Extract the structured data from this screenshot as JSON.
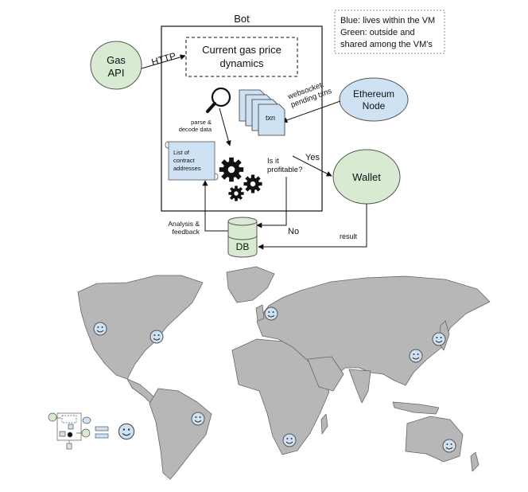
{
  "legend": {
    "line1": "Blue: lives within the VM",
    "line2": "Green: outside and",
    "line3": "shared among the VM's"
  },
  "bot": {
    "title": "Bot"
  },
  "gas_price": {
    "line1": "Current gas price",
    "line2": "dynamics"
  },
  "gas_api": {
    "line1": "Gas",
    "line2": "API"
  },
  "http_label": "HTTP",
  "ethereum_node": {
    "line1": "Ethereum",
    "line2": "Node"
  },
  "websocket": {
    "line1": "websocket:",
    "line2": "pending txns"
  },
  "txn_label": "txn",
  "parse": {
    "line1": "parse &",
    "line2": "decode data"
  },
  "contracts": {
    "line1": "List of",
    "line2": "contract",
    "line3": "addresses"
  },
  "profitable": {
    "line1": "Is it",
    "line2": "profitable?"
  },
  "yes_label": "Yes",
  "no_label": "No",
  "wallet_label": "Wallet",
  "analysis": {
    "line1": "Analysis &",
    "line2": "feedback"
  },
  "result_label": "result",
  "db_label": "DB",
  "colors": {
    "vm_blue": "#cfe2f3",
    "shared_green": "#d9ead3",
    "map_land": "#b7b7b7",
    "smiley": "#cfe2f3"
  },
  "icons": [
    "magnifier-icon",
    "gear-icon",
    "smiley-icon"
  ]
}
